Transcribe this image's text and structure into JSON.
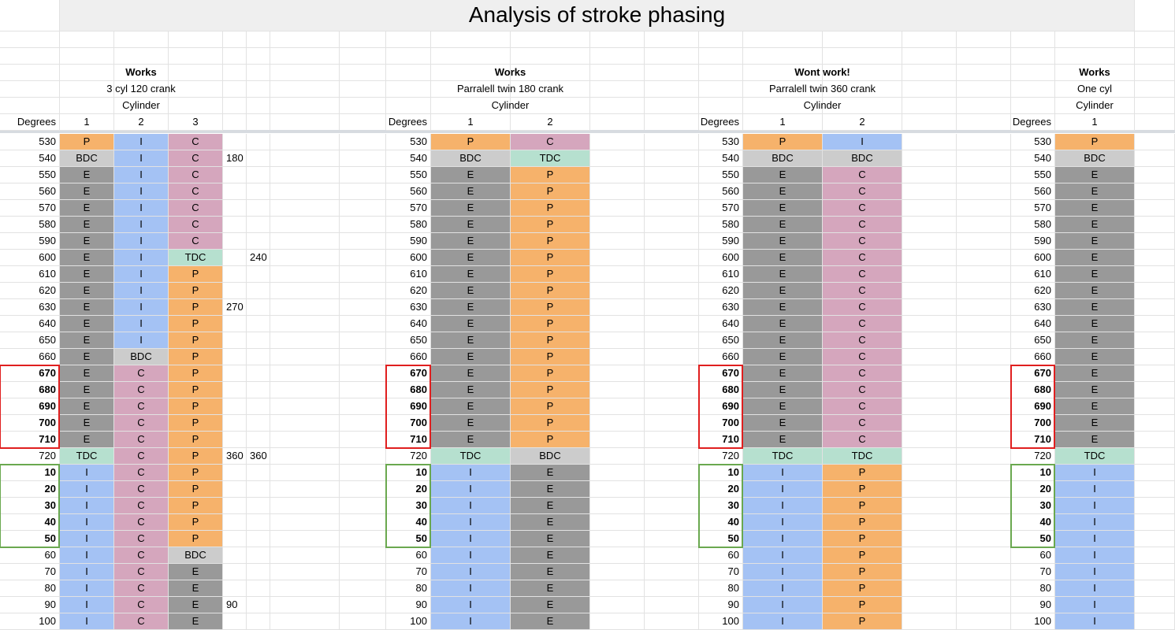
{
  "title": "Analysis of stroke phasing",
  "colors": {
    "P": "#f6b26b",
    "I": "#a4c2f4",
    "C": "#d5a6bd",
    "E": "#999999",
    "BDC": "#cccccc",
    "TDC": "#b6e0cf",
    "red_box": "#e01f1f",
    "green_box": "#6aa84f"
  },
  "sections": [
    {
      "status": "Works",
      "subtitle": "3 cyl 120 crank",
      "cylinder_label": "Cylinder",
      "degrees_label": "Degrees",
      "cylinders": [
        "1",
        "2",
        "3"
      ]
    },
    {
      "status": "Works",
      "subtitle": "Parralell twin 180 crank",
      "cylinder_label": "Cylinder",
      "degrees_label": "Degrees",
      "cylinders": [
        "1",
        "2"
      ]
    },
    {
      "status": "Wont work!",
      "subtitle": "Parralell twin 360 crank",
      "cylinder_label": "Cylinder",
      "degrees_label": "Degrees",
      "cylinders": [
        "1",
        "2"
      ]
    },
    {
      "status": "Works",
      "subtitle": "One cyl",
      "cylinder_label": "Cylinder",
      "degrees_label": "Degrees",
      "cylinders": [
        "1"
      ]
    }
  ],
  "degrees": [
    "530",
    "540",
    "550",
    "560",
    "570",
    "580",
    "590",
    "600",
    "610",
    "620",
    "630",
    "640",
    "650",
    "660",
    "670",
    "680",
    "690",
    "700",
    "710",
    "720",
    "10",
    "20",
    "30",
    "40",
    "50",
    "60",
    "70",
    "80",
    "90",
    "100"
  ],
  "bold_rows": [
    14,
    15,
    16,
    17,
    18,
    20,
    21,
    22,
    23,
    24
  ],
  "table1": {
    "cyl1": [
      "P",
      "BDC",
      "E",
      "E",
      "E",
      "E",
      "E",
      "E",
      "E",
      "E",
      "E",
      "E",
      "E",
      "E",
      "E",
      "E",
      "E",
      "E",
      "E",
      "TDC",
      "I",
      "I",
      "I",
      "I",
      "I",
      "I",
      "I",
      "I",
      "I",
      "I"
    ],
    "cyl2": [
      "I",
      "I",
      "I",
      "I",
      "I",
      "I",
      "I",
      "I",
      "I",
      "I",
      "I",
      "I",
      "I",
      "BDC",
      "C",
      "C",
      "C",
      "C",
      "C",
      "C",
      "C",
      "C",
      "C",
      "C",
      "C",
      "C",
      "C",
      "C",
      "C",
      "C"
    ],
    "cyl3": [
      "C",
      "C",
      "C",
      "C",
      "C",
      "C",
      "C",
      "TDC",
      "P",
      "P",
      "P",
      "P",
      "P",
      "P",
      "P",
      "P",
      "P",
      "P",
      "P",
      "P",
      "P",
      "P",
      "P",
      "P",
      "P",
      "BDC",
      "E",
      "E",
      "E",
      "E"
    ],
    "notes_a": [
      "",
      "180",
      "",
      "",
      "",
      "",
      "",
      "",
      "",
      "",
      "270",
      "",
      "",
      "",
      "",
      "",
      "",
      "",
      "",
      "360",
      "",
      "",
      "",
      "",
      "",
      "",
      "",
      "",
      "90",
      ""
    ],
    "notes_b": [
      "",
      "",
      "",
      "",
      "",
      "",
      "",
      "240",
      "",
      "",
      "",
      "",
      "",
      "",
      "",
      "",
      "",
      "",
      "",
      "360",
      "",
      "",
      "",
      "",
      "",
      "",
      "",
      "",
      "",
      ""
    ]
  },
  "table2": {
    "cyl1": [
      "P",
      "BDC",
      "E",
      "E",
      "E",
      "E",
      "E",
      "E",
      "E",
      "E",
      "E",
      "E",
      "E",
      "E",
      "E",
      "E",
      "E",
      "E",
      "E",
      "TDC",
      "I",
      "I",
      "I",
      "I",
      "I",
      "I",
      "I",
      "I",
      "I",
      "I"
    ],
    "cyl2": [
      "C",
      "TDC",
      "P",
      "P",
      "P",
      "P",
      "P",
      "P",
      "P",
      "P",
      "P",
      "P",
      "P",
      "P",
      "P",
      "P",
      "P",
      "P",
      "P",
      "BDC",
      "E",
      "E",
      "E",
      "E",
      "E",
      "E",
      "E",
      "E",
      "E",
      "E"
    ]
  },
  "table3": {
    "cyl1": [
      "P",
      "BDC",
      "E",
      "E",
      "E",
      "E",
      "E",
      "E",
      "E",
      "E",
      "E",
      "E",
      "E",
      "E",
      "E",
      "E",
      "E",
      "E",
      "E",
      "TDC",
      "I",
      "I",
      "I",
      "I",
      "I",
      "I",
      "I",
      "I",
      "I",
      "I"
    ],
    "cyl2": [
      "I",
      "BDC",
      "C",
      "C",
      "C",
      "C",
      "C",
      "C",
      "C",
      "C",
      "C",
      "C",
      "C",
      "C",
      "C",
      "C",
      "C",
      "C",
      "C",
      "TDC",
      "P",
      "P",
      "P",
      "P",
      "P",
      "P",
      "P",
      "P",
      "P",
      "P"
    ]
  },
  "table4": {
    "cyl1": [
      "P",
      "BDC",
      "E",
      "E",
      "E",
      "E",
      "E",
      "E",
      "E",
      "E",
      "E",
      "E",
      "E",
      "E",
      "E",
      "E",
      "E",
      "E",
      "E",
      "TDC",
      "I",
      "I",
      "I",
      "I",
      "I",
      "I",
      "I",
      "I",
      "I",
      "I"
    ]
  }
}
